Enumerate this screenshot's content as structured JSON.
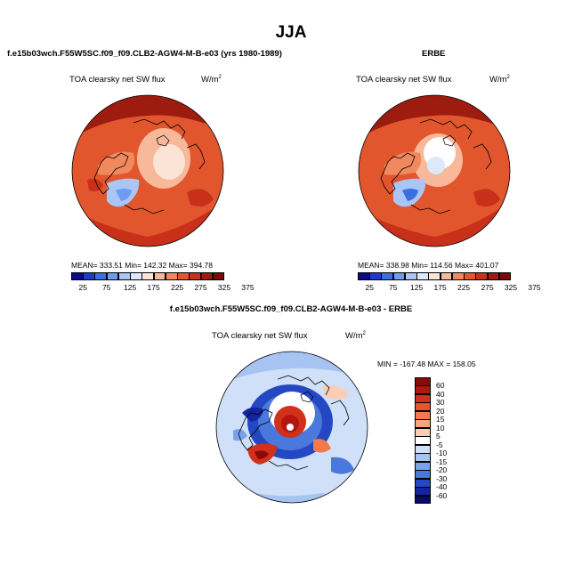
{
  "figure": {
    "title": "JJA"
  },
  "panels": [
    {
      "id": "model",
      "title": "f.e15b03wch.F55W5SC.f09_f09.CLB2-AGW4-M-B-e03 (yrs 1980-1989)",
      "variable": "TOA clearsky net SW flux",
      "units": "W/m",
      "units_sup": "2",
      "stats": "MEAN= 333.51   Min= 142.32   Max= 394.78"
    },
    {
      "id": "obs",
      "title": "ERBE",
      "variable": "TOA clearsky net SW flux",
      "units": "W/m",
      "units_sup": "2",
      "stats": "MEAN= 338.98   Min= 114.56   Max= 401.07"
    },
    {
      "id": "diff",
      "title": "f.e15b03wch.F55W5SC.f09_f09.CLB2-AGW4-M-B-e03 - ERBE",
      "variable": "TOA clearsky net SW flux",
      "units": "W/m",
      "units_sup": "2",
      "stats": "MIN = -167.48  MAX = 158.05"
    }
  ],
  "colorbars": {
    "absolute": {
      "tick_labels": [
        "25",
        "75",
        "125",
        "175",
        "225",
        "275",
        "325",
        "375"
      ],
      "colors": [
        "#0a0a8c",
        "#1a3dc8",
        "#3a6fe0",
        "#6f9bf0",
        "#a9c6f7",
        "#dde9fb",
        "#fbe3d6",
        "#f7b99a",
        "#f08a5e",
        "#e2562e",
        "#c8301a",
        "#9e1b10",
        "#7a0a0a"
      ]
    },
    "difference": {
      "tick_labels": [
        "60",
        "40",
        "30",
        "20",
        "15",
        "10",
        "5",
        "-5",
        "-10",
        "-15",
        "-20",
        "-30",
        "-40",
        "-60"
      ],
      "colors": [
        "#8a0a0a",
        "#b4160f",
        "#d2301a",
        "#e8542c",
        "#f27a4b",
        "#f7a37c",
        "#fbcdb3",
        "#ffffff",
        "#cfe0f8",
        "#a6c3f2",
        "#7aa2ea",
        "#4a78dc",
        "#2447c4",
        "#13249c",
        "#0a0a6e"
      ]
    }
  }
}
